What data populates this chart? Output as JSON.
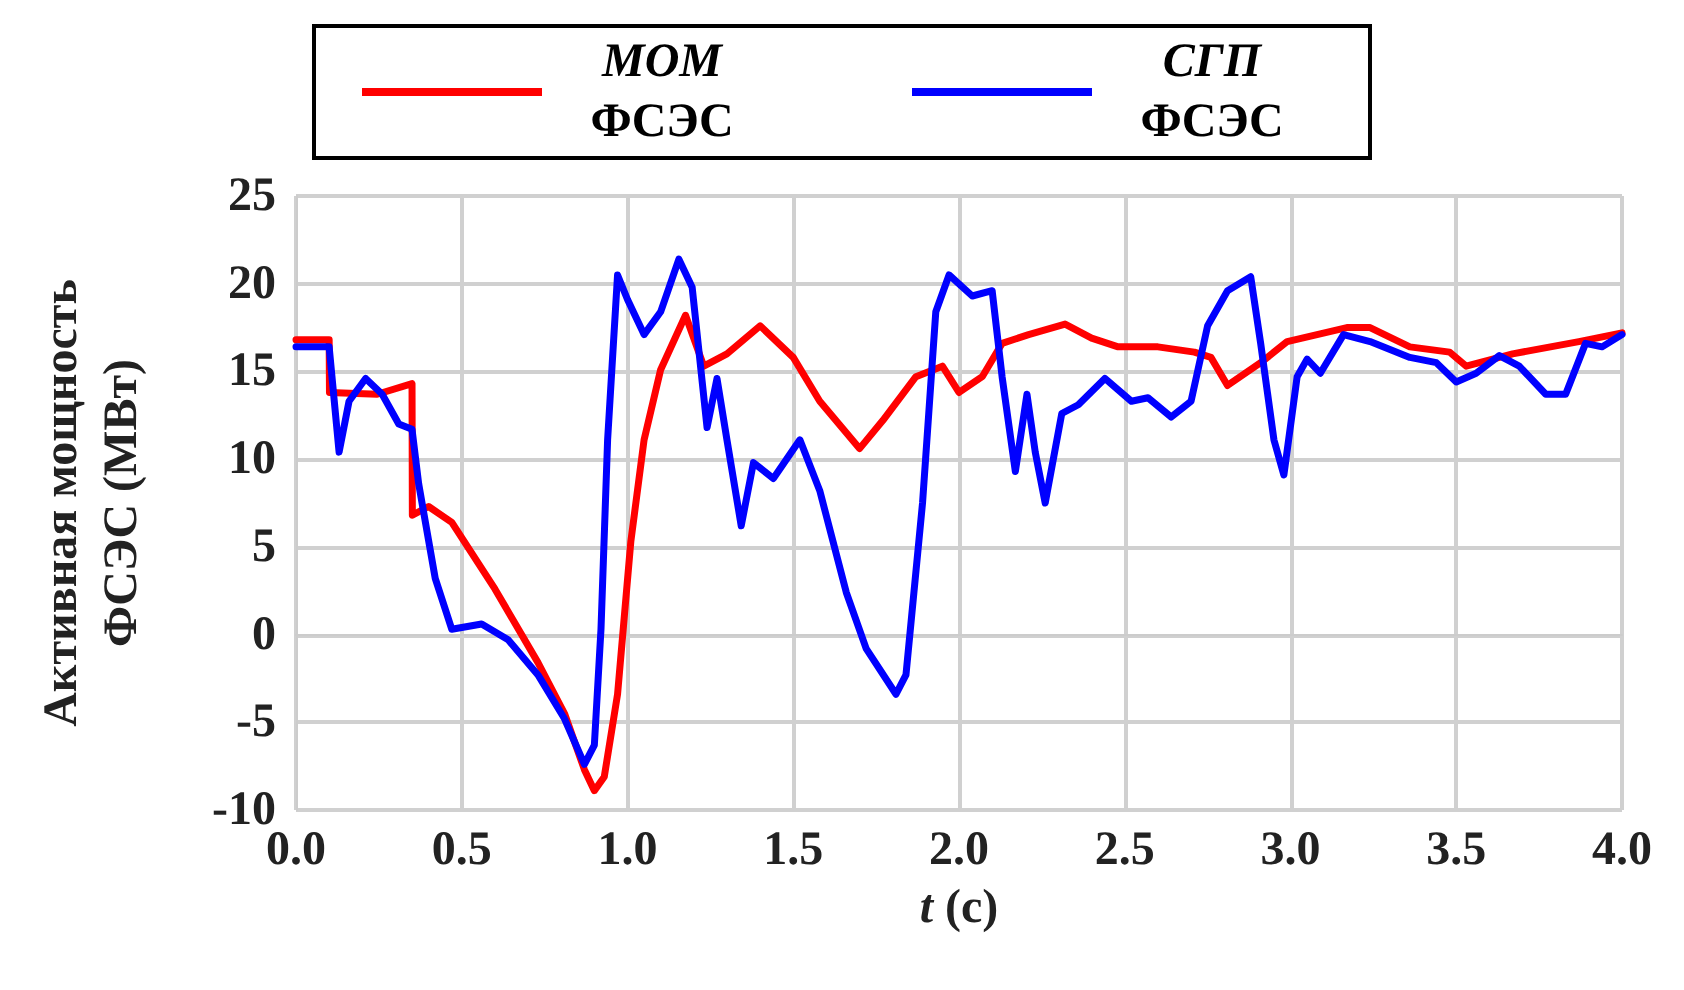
{
  "chart_data": {
    "type": "line",
    "xlabel": "t (c)",
    "ylabel": "Активная мощность ФСЭС (МВт)",
    "xlim": [
      0,
      4
    ],
    "ylim": [
      -10,
      25
    ],
    "xticks": [
      {
        "value": 0,
        "label": "0.0"
      },
      {
        "value": 0.5,
        "label": "0.5"
      },
      {
        "value": 1,
        "label": "1.0"
      },
      {
        "value": 1.5,
        "label": "1.5"
      },
      {
        "value": 2,
        "label": "2.0"
      },
      {
        "value": 2.5,
        "label": "2.5"
      },
      {
        "value": 3,
        "label": "3.0"
      },
      {
        "value": 3.5,
        "label": "3.5"
      },
      {
        "value": 4,
        "label": "4.0"
      }
    ],
    "yticks": [
      -10,
      -5,
      0,
      5,
      10,
      15,
      20,
      25
    ],
    "grid": true,
    "legend": "top",
    "marker": "none",
    "line_style": "solid",
    "series": [
      {
        "name": "МОМ ФСЭС",
        "color": "#ff0000",
        "x": [
          0,
          0.1,
          0.101,
          0.245,
          0.35,
          0.351,
          0.4,
          0.47,
          0.6,
          0.73,
          0.81,
          0.87,
          0.9,
          0.93,
          0.97,
          1.01,
          1.05,
          1.1,
          1.175,
          1.23,
          1.3,
          1.4,
          1.5,
          1.58,
          1.7,
          1.77,
          1.87,
          1.95,
          2.0,
          2.07,
          2.13,
          2.21,
          2.32,
          2.4,
          2.48,
          2.6,
          2.71,
          2.76,
          2.81,
          2.91,
          2.99,
          3.17,
          3.24,
          3.36,
          3.48,
          3.53,
          3.67,
          3.87,
          4.0
        ],
        "values": [
          16.8,
          16.8,
          13.8,
          13.7,
          14.3,
          6.8,
          7.3,
          6.4,
          2.6,
          -1.6,
          -4.5,
          -7.7,
          -8.9,
          -8.1,
          -3.4,
          5.3,
          11.1,
          15.1,
          18.2,
          15.3,
          16.0,
          17.6,
          15.8,
          13.3,
          10.6,
          12.2,
          14.7,
          15.3,
          13.8,
          14.7,
          16.6,
          17.1,
          17.7,
          16.9,
          16.4,
          16.4,
          16.1,
          15.8,
          14.2,
          15.5,
          16.7,
          17.5,
          17.5,
          16.4,
          16.1,
          15.3,
          16.0,
          16.7,
          17.2
        ]
      },
      {
        "name": "СГП ФСЭС",
        "color": "#0000ff",
        "x": [
          0,
          0.1,
          0.13,
          0.16,
          0.21,
          0.26,
          0.31,
          0.35,
          0.37,
          0.42,
          0.47,
          0.56,
          0.64,
          0.73,
          0.81,
          0.87,
          0.9,
          0.92,
          0.94,
          0.97,
          1.0,
          1.05,
          1.1,
          1.155,
          1.195,
          1.24,
          1.27,
          1.3,
          1.343,
          1.38,
          1.44,
          1.52,
          1.58,
          1.66,
          1.72,
          1.81,
          1.84,
          1.89,
          1.93,
          1.97,
          2.04,
          2.1,
          2.13,
          2.17,
          2.205,
          2.23,
          2.26,
          2.31,
          2.36,
          2.44,
          2.52,
          2.57,
          2.64,
          2.7,
          2.75,
          2.81,
          2.88,
          2.91,
          2.95,
          2.98,
          3.02,
          3.05,
          3.09,
          3.16,
          3.24,
          3.36,
          3.44,
          3.5,
          3.56,
          3.63,
          3.69,
          3.77,
          3.83,
          3.89,
          3.94,
          4.0
        ],
        "values": [
          16.4,
          16.4,
          10.4,
          13.3,
          14.6,
          13.7,
          12.0,
          11.7,
          8.6,
          3.2,
          0.3,
          0.6,
          -0.3,
          -2.3,
          -4.8,
          -7.4,
          -6.3,
          0.3,
          11.1,
          20.5,
          19.1,
          17.1,
          18.4,
          21.4,
          19.8,
          11.8,
          14.6,
          11.1,
          6.2,
          9.8,
          8.9,
          11.1,
          8.2,
          2.4,
          -0.8,
          -3.4,
          -2.3,
          7.5,
          18.4,
          20.5,
          19.3,
          19.6,
          14.7,
          9.3,
          13.7,
          10.4,
          7.5,
          12.6,
          13.1,
          14.6,
          13.3,
          13.5,
          12.4,
          13.3,
          17.6,
          19.6,
          20.4,
          16.6,
          11.1,
          9.1,
          14.7,
          15.7,
          14.9,
          17.1,
          16.7,
          15.8,
          15.5,
          14.4,
          14.9,
          15.9,
          15.3,
          13.7,
          13.7,
          16.6,
          16.4,
          17.1
        ]
      }
    ]
  }
}
